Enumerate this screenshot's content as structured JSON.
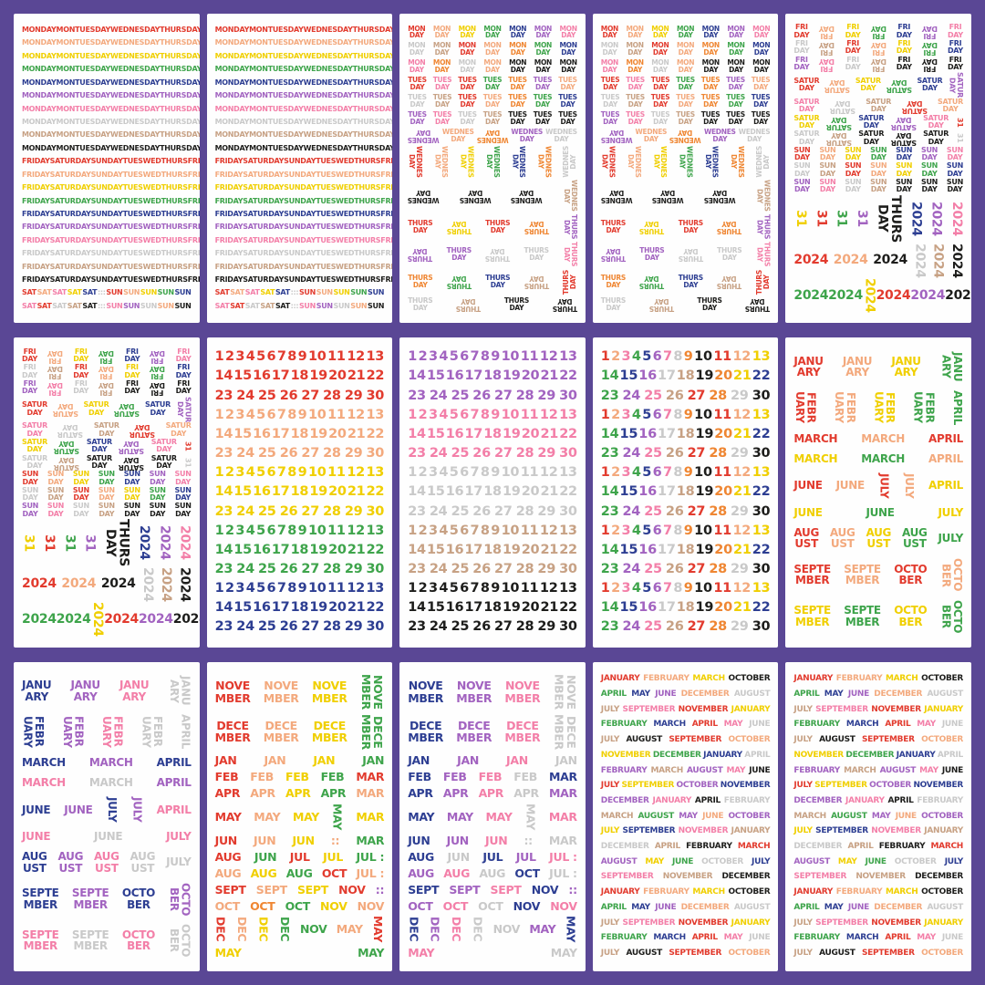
{
  "collage": {
    "columns": 5,
    "rows": 3,
    "background": "#5a4795",
    "sheet_background": "#fefefe"
  },
  "palette": {
    "R": "#e23b2e",
    "O": "#ef8632",
    "P": "#f3a97d",
    "Y": "#f0cf00",
    "G": "#3ea44b",
    "B": "#2d3e92",
    "V": "#a263c0",
    "K": "#f37fa8",
    "E": "#c9c9c9",
    "T": "#c7a184",
    "X": "#1d1d1b"
  },
  "sheet_order": [
    "weekdays",
    "weekdays",
    "stacked_days",
    "stacked_days",
    "fri_sat_sun_2024",
    "fri_sat_sun_2024",
    "numbers_warm",
    "numbers_cool",
    "numbers_multi",
    "months_stacked_warm",
    "months_stacked_cool",
    "months_abbrev_warm",
    "months_abbrev_cool",
    "months_full",
    "months_full"
  ],
  "sheet_defs": {
    "weekdays": {
      "font": 8,
      "groups": [
        {
          "kind": "uniform",
          "lines": [
            "MONDAY MON TUESDAY WEDNESDAY THURSDAY"
          ],
          "colors": [
            "R",
            "P",
            "Y",
            "G",
            "B",
            "V",
            "K",
            "E",
            "T",
            "X"
          ]
        },
        {
          "kind": "uniform",
          "lines": [
            "FRIDAY SATURDAY SUNDAY TUES WED THURS FRI"
          ],
          "colors": [
            "R",
            "P",
            "Y",
            "G",
            "B",
            "V",
            "K",
            "E",
            "T",
            "X"
          ]
        },
        {
          "kind": "rows",
          "rows": [
            [
              "SAT|R",
              "SAT|P",
              "SAT|K",
              "SAT|Y",
              "SAT|B",
              ":::|E",
              "SUN|R",
              "SUN|P",
              "SUN|Y",
              "SUN|G",
              "SUN|B"
            ],
            [
              "SAT|K",
              "SAT|R",
              "SAT|E",
              "SAT|T",
              "SAT|X",
              ":::|E",
              "SUN|K",
              "SUN|V",
              "SUN|E",
              "SUN|P",
              "SUN|X"
            ]
          ]
        }
      ]
    },
    "stacked_days": {
      "font": 7.5,
      "groups": [
        {
          "kind": "rows",
          "rows": [
            [
              "MON/DAY|R",
              "MON/DAY|P",
              "MON/DAY|Y",
              "MON/DAY|G",
              "MON/DAY|B",
              "MON/DAY|V",
              "MON/DAY|K"
            ],
            [
              "MON/DAY|E",
              "MON/DAY|T",
              "MON/DAY|R",
              "MON/DAY|P",
              "MON/DAY|O",
              "MON/DAY|G",
              "MON/DAY|B"
            ],
            [
              "MON/DAY|K",
              "MON/DAY|O",
              "MON/DAY|E",
              "MON/DAY|P",
              "MON/DAY|X",
              "MON/DAY|X",
              "MON/DAY|X"
            ],
            [
              "TUES/DAY|R",
              "TUES/DAY|K",
              "TUES/DAY|R",
              "TUES/DAY|G",
              "TUES/DAY|O",
              "TUES/DAY|V",
              "TUES/DAY|P"
            ],
            [
              "TUES/DAY|E",
              "TUES/DAY|T",
              "TUES/DAY|R",
              "TUES/DAY|P",
              "TUES/DAY|O",
              "TUES/DAY|G",
              "TUES/DAY|B"
            ],
            [
              "TUES/DAY|V",
              "TUES/DAY|K",
              "TUES/DAY|E",
              "TUES/DAY|T",
              "TUES/DAY|X",
              "TUES/DAY|X",
              "TUES/DAY|X"
            ],
            [
              "WEDNES/DAY|V|180",
              "WEDNES/DAY|P",
              "WEDNES/DAY|O|180",
              "WEDNES/DAY|V",
              "WEDNES/DAY|E"
            ],
            [
              "WEDNES/DAY|R|90",
              "WEDNES/DAY|P|90",
              "WEDNES/DAY|Y|90",
              "WEDNES/DAY|G|90",
              "WEDNES/DAY|B|90",
              "WEDNES/DAY|O|90",
              "WEDNES/DAY|E|270"
            ],
            [
              "WEDNES/DAY|X|180",
              "WEDNES/DAY|X|180",
              "WEDNES/DAY|X|180",
              "WEDNES/DAY|T|90"
            ],
            [
              "THURS/DAY|R",
              "THURS/DAY|Y|180",
              "THURS/DAY|R",
              "THURS/DAY|O|180",
              "THURS/DAY|V|90"
            ],
            [
              "THURS/DAY|V|180",
              "THURS/DAY|V",
              "THURS/DAY|E|180",
              "THURS/DAY|E",
              "THURS/DAY|K|90"
            ],
            [
              "THURS/DAY|O",
              "THURS/DAY|G|180",
              "THURS/DAY|B",
              "THURS/DAY|T|180",
              "THURS/DAY|R|270"
            ],
            [
              "THURS/DAY|E",
              "THURS/DAY|T|180",
              "THURS/DAY|X",
              "THURS/DAY|X|180"
            ]
          ]
        }
      ]
    },
    "fri_sat_sun_2024": {
      "font": 8,
      "groups": [
        {
          "kind": "rows",
          "rows": [
            [
              "FRI/DAY|R",
              "FRI/DAY|P|180",
              "FRI/DAY|Y",
              "FRI/DAY|G|180",
              "FRI/DAY|B",
              "FRI/DAY|V|180",
              "FRI/DAY|K"
            ],
            [
              "FRI/DAY|E",
              "FRI/DAY|T|180",
              "FRI/DAY|R",
              "FRI/DAY|P|180",
              "FRI/DAY|Y",
              "FRI/DAY|G|180",
              "FRI/DAY|B"
            ],
            [
              "FRI/DAY|V",
              "FRI/DAY|K|180",
              "FRI/DAY|E",
              "FRI/DAY|T|180",
              "FRI/DAY|X",
              "FRI/DAY|X|180",
              "FRI/DAY|X"
            ],
            [
              "SATUR/DAY|R",
              "SATUR/DAY|P|180",
              "SATUR/DAY|Y",
              "SATUR/DAY|G|180",
              "SATUR/DAY|B",
              "SATUR/DAY|V|90"
            ],
            [
              "SATUR/DAY|K",
              "SATUR/DAY|E|180",
              "SATUR/DAY|T",
              "SATUR/DAY|R|180",
              "SATUR/DAY|P"
            ],
            [
              "SATUR/DAY|Y",
              "SATUR/DAY|G|180",
              "SATUR/DAY|B",
              "SATUR/DAY|V|180",
              "SATUR/DAY|K",
              "31|R|90"
            ],
            [
              "SATUR/DAY|E",
              "SATUR/DAY|T|180",
              "SATUR/DAY|X",
              "SATUR/DAY|X|180",
              "SATUR/DAY|X",
              "31|E|90"
            ],
            [
              "SUN/DAY|R",
              "SUN/DAY|P",
              "SUN/DAY|Y",
              "SUN/DAY|G",
              "SUN/DAY|B",
              "SUN/DAY|V",
              "SUN/DAY|K"
            ],
            [
              "SUN/DAY|E",
              "SUN/DAY|T",
              "SUN/DAY|R",
              "SUN/DAY|P",
              "SUN/DAY|Y",
              "SUN/DAY|G",
              "SUN/DAY|B"
            ],
            [
              "SUN/DAY|V",
              "SUN/DAY|K",
              "SUN/DAY|E",
              "SUN/DAY|T",
              "SUN/DAY|X",
              "SUN/DAY|X",
              "SUN/DAY|X"
            ]
          ]
        },
        {
          "kind": "rows",
          "cls": "big",
          "rows": [
            [
              "31|Y|90",
              "31|R|90",
              "31|G|90",
              "31|V|90",
              "THURS/DAY|X|90",
              "2024|B|90",
              "2024|V|90",
              "2024|K|90"
            ],
            [
              "2024|R",
              "2024|P",
              "2024|X",
              "2024|E|90",
              "2024|T|90",
              "2024|X|90"
            ],
            [
              "2024|G",
              "2024|G",
              "2024|Y|90",
              "2024|R",
              "2024|V",
              "2024|X"
            ]
          ]
        }
      ]
    },
    "numbers_warm": {
      "font": 14.5,
      "groups": [
        {
          "kind": "uniform",
          "lines": [
            "1 2 3 4 5 6 7 8 9 10 11 12 13",
            "14 15 16 17 18 19 20 21 22",
            "23 24 25 26 27 28 29 30"
          ],
          "colors": [
            "R",
            "P",
            "Y",
            "G",
            "B"
          ]
        }
      ]
    },
    "numbers_cool": {
      "font": 14.5,
      "groups": [
        {
          "kind": "uniform",
          "lines": [
            "1 2 3 4 5 6 7 8 9 10 11 12 13",
            "14 15 16 17 18 19 20 21 22",
            "23 24 25 26 27 28 29 30"
          ],
          "colors": [
            "V",
            "K",
            "E",
            "T",
            "X"
          ]
        }
      ]
    },
    "numbers_multi": {
      "font": 14.5,
      "groups": [
        {
          "kind": "multi",
          "repeat": 5,
          "lines": [
            "1 2 3 4 5 6 7 8 9 10 11 12 13",
            "14 15 16 17 18 19 20 21 22",
            "23 24 25 26 27 28 29 30"
          ],
          "cycle": [
            "R",
            "P",
            "K",
            "G",
            "B",
            "V",
            "K",
            "E",
            "O",
            "X",
            "R",
            "P",
            "Y",
            "G",
            "B",
            "V",
            "E",
            "T",
            "X",
            "O",
            "Y",
            "B",
            "G",
            "V",
            "K",
            "T",
            "R",
            "O",
            "E",
            "X"
          ]
        }
      ]
    },
    "months_stacked_warm": {
      "font": 12,
      "groups": [
        {
          "kind": "rows",
          "rows": [
            [
              "JANU/ARY|R",
              "JANU/ARY|P",
              "JANU/ARY|Y",
              "JANU/ARY|G|90"
            ],
            [
              "FEBR/UARY|R|90",
              "FEBR/UARY|P|90",
              "FEBR/UARY|Y|90",
              "FEBR/UARY|G|90",
              "APRIL|G|90"
            ],
            [
              "MARCH|R",
              "MARCH|P",
              "APRIL|R"
            ],
            [
              "MARCH|Y",
              "MARCH|G",
              "APRIL|P"
            ],
            [
              "JUNE|R",
              "JUNE|P",
              "JULY|R|90",
              "JULY|P|90",
              "APRIL|Y"
            ],
            [
              "JUNE|Y",
              "JUNE|G",
              "JULY|Y"
            ],
            [
              "AUG/UST|R",
              "AUG/UST|P",
              "AUG/UST|Y",
              "AUG/UST|G",
              "JULY|G"
            ],
            [
              "SEPTE/MBER|R",
              "SEPTE/MBER|P",
              "OCTO/BER|R",
              "OCTO/BER|P|90"
            ],
            [
              "SEPTE/MBER|Y",
              "SEPTE/MBER|G",
              "OCTO/BER|Y",
              "OCTO/BER|G|90"
            ]
          ]
        }
      ]
    },
    "months_stacked_cool": {
      "font": 12,
      "groups": [
        {
          "kind": "rows",
          "rows": [
            [
              "JANU/ARY|B",
              "JANU/ARY|V",
              "JANU/ARY|K",
              "JANU/ARY|E|90"
            ],
            [
              "FEBR/UARY|B|90",
              "FEBR/UARY|V|90",
              "FEBR/UARY|K|90",
              "FEBR/UARY|E|90",
              "APRIL|E|90"
            ],
            [
              "MARCH|B",
              "MARCH|V",
              "APRIL|B"
            ],
            [
              "MARCH|K",
              "MARCH|E",
              "APRIL|V"
            ],
            [
              "JUNE|B",
              "JUNE|V",
              "JULY|B|90",
              "JULY|V|90",
              "APRIL|K"
            ],
            [
              "JUNE|K",
              "JUNE|E",
              "JULY|K"
            ],
            [
              "AUG/UST|B",
              "AUG/UST|V",
              "AUG/UST|K",
              "AUG/UST|E",
              "JULY|E"
            ],
            [
              "SEPTE/MBER|B",
              "SEPTE/MBER|V",
              "OCTO/BER|B",
              "OCTO/BER|V|90"
            ],
            [
              "SEPTE/MBER|K",
              "SEPTE/MBER|E",
              "OCTO/BER|K",
              "OCTO/BER|E|90"
            ]
          ]
        }
      ]
    },
    "months_abbrev_warm": {
      "font": 12.5,
      "groups": [
        {
          "kind": "rows",
          "rows": [
            [
              "NOVE/MBER|R",
              "NOVE/MBER|P",
              "NOVE/MBER|Y",
              "NOVE/MBER|G|90"
            ],
            [
              "DECE/MBER|R",
              "DECE/MBER|P",
              "DECE/MBER|Y",
              "DECE/MBER|G|90"
            ],
            [
              "JAN|R",
              "JAN|P",
              "JAN|Y",
              "JAN|G"
            ],
            [
              "FEB|R",
              "FEB|P",
              "FEB|Y",
              "FEB|G",
              "MAR|R"
            ],
            [
              "APR|R",
              "APR|P",
              "APR|Y",
              "APR|G",
              "MAR|P"
            ],
            [
              "MAY|R",
              "MAY|P",
              "MAY|Y",
              "MAY|G|90",
              "MAR|Y"
            ],
            [
              "JUN|R",
              "JUN|P",
              "JUN|Y",
              "::|P",
              "MAR|G"
            ],
            [
              "AUG|R",
              "JUN|G",
              "JUL|R",
              "JUL|Y",
              "JUL :|G"
            ],
            [
              "AUG|P",
              "AUG|Y",
              "AUG|G",
              "OCT|R",
              "JUL :|P"
            ],
            [
              "SEPT|R",
              "SEPT|P",
              "SEPT|Y",
              "NOV|R",
              "::|V"
            ],
            [
              "OCT|P",
              "OCT|O",
              "OCT|G",
              "NOV|Y",
              "NOV|P"
            ],
            [
              "DEC|R|90",
              "DEC|P|90",
              "DEC|Y|90",
              "DEC|G|90",
              "NOV|G",
              "MAY|P",
              "MAY|R|90"
            ],
            [
              "MAY|Y",
              "MAY|G"
            ]
          ]
        }
      ]
    },
    "months_abbrev_cool": {
      "font": 12.5,
      "groups": [
        {
          "kind": "rows",
          "rows": [
            [
              "NOVE/MBER|B",
              "NOVE/MBER|V",
              "NOVE/MBER|K",
              "NOVE/MBER|E|90"
            ],
            [
              "DECE/MBER|B",
              "DECE/MBER|V",
              "DECE/MBER|K",
              "DECE/MBER|E|90"
            ],
            [
              "JAN|B",
              "JAN|V",
              "JAN|K",
              "JAN|E"
            ],
            [
              "FEB|B",
              "FEB|V",
              "FEB|K",
              "FEB|E",
              "MAR|B"
            ],
            [
              "APR|B",
              "APR|V",
              "APR|K",
              "APR|E",
              "MAR|V"
            ],
            [
              "MAY|B",
              "MAY|V",
              "MAY|K",
              "MAY|E|90",
              "MAR|K"
            ],
            [
              "JUN|B",
              "JUN|V",
              "JUN|K",
              "::|E",
              "MAR|E"
            ],
            [
              "AUG|B",
              "JUN|E",
              "JUL|B",
              "JUL|V",
              "JUL :|K"
            ],
            [
              "AUG|V",
              "AUG|K",
              "AUG|E",
              "OCT|B",
              "JUL :|E"
            ],
            [
              "SEPT|B",
              "SEPT|V",
              "SEPT|K",
              "NOV|B",
              "::|V"
            ],
            [
              "OCT|V",
              "OCT|K",
              "OCT|E",
              "NOV|B",
              "NOV|K"
            ],
            [
              "DEC|B|90",
              "DEC|V|90",
              "DEC|K|90",
              "DEC|E|90",
              "NOV|E",
              "MAY|V",
              "MAY|B|90"
            ],
            [
              "MAY|K",
              "MAY|E"
            ]
          ]
        }
      ]
    },
    "months_full": {
      "font": 9,
      "groups": [
        {
          "kind": "rows",
          "rows": [
            [
              "JANUARY|R",
              "FEBRUARY|P",
              "MARCH|Y",
              "OCTOBER|X"
            ],
            [
              "APRIL|G",
              "MAY|B",
              "JUNE|V",
              "DECEMBER|P",
              "AUGUST|E"
            ],
            [
              "JULY|T",
              "SEPTEMBER|K",
              "NOVEMBER|R",
              "JANUARY|Y"
            ],
            [
              "FEBRUARY|G",
              "MARCH|B",
              "APRIL|R",
              "MAY|K",
              "JUNE|E"
            ],
            [
              "JULY|T",
              "AUGUST|X",
              "SEPTEMBER|R",
              "OCTOBER|P"
            ],
            [
              "NOVEMBER|Y",
              "DECEMBER|G",
              "JANUARY|B",
              "APRIL|E"
            ],
            [
              "FEBRUARY|V",
              "MARCH|T",
              "AUGUST|V",
              "MAY|K",
              "JUNE|X"
            ],
            [
              "JULY|R",
              "SEPTEMBER|Y",
              "OCTOBER|V",
              "NOVEMBER|B"
            ],
            [
              "DECEMBER|V",
              "JANUARY|K",
              "APRIL|X",
              "FEBRUARY|E"
            ],
            [
              "MARCH|T",
              "AUGUST|G",
              "MAY|V",
              "JUNE|P",
              "OCTOBER|V"
            ],
            [
              "JULY|Y",
              "SEPTEMBER|B",
              "NOVEMBER|K",
              "JANUARY|T"
            ],
            [
              "DECEMBER|E",
              "APRIL|T",
              "FEBRUARY|X",
              "MARCH|R"
            ],
            [
              "AUGUST|V",
              "MAY|Y",
              "JUNE|G",
              "OCTOBER|E",
              "JULY|B"
            ],
            [
              "SEPTEMBER|K",
              "NOVEMBER|T",
              "DECEMBER|X"
            ],
            [
              "JANUARY|R",
              "FEBRUARY|P",
              "MARCH|Y",
              "OCTOBER|X"
            ],
            [
              "APRIL|G",
              "MAY|B",
              "JUNE|V",
              "DECEMBER|P",
              "AUGUST|E"
            ],
            [
              "JULY|T",
              "SEPTEMBER|K",
              "NOVEMBER|R",
              "JANUARY|Y"
            ],
            [
              "FEBRUARY|G",
              "MARCH|B",
              "APRIL|R",
              "MAY|K",
              "JUNE|E"
            ],
            [
              "JULY|T",
              "AUGUST|X",
              "SEPTEMBER|R",
              "OCTOBER|P"
            ]
          ]
        }
      ]
    }
  }
}
